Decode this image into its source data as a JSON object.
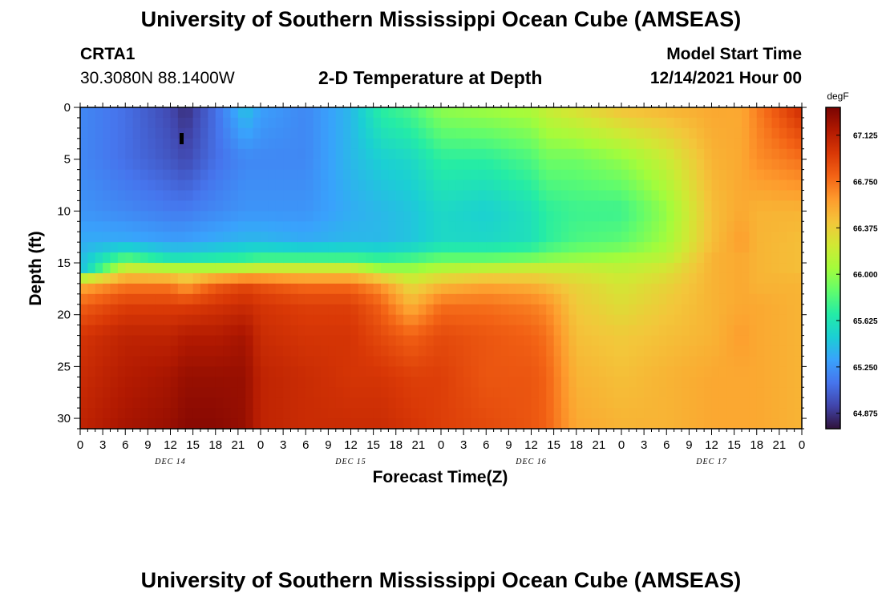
{
  "header": {
    "title": "University of Southern Mississippi Ocean Cube (AMSEAS)",
    "station": "CRTA1",
    "coords": "30.3080N  88.1400W",
    "chart_title": "2-D Temperature at Depth",
    "model_start_label": "Model Start Time",
    "model_start_value": "12/14/2021 Hour 00"
  },
  "footer": {
    "title": "University of Southern Mississippi Ocean Cube (AMSEAS)"
  },
  "chart_data": {
    "type": "heatmap",
    "title": "2-D Temperature at Depth",
    "xlabel": "Forecast Time(Z)",
    "ylabel": "Depth (ft)",
    "x_tick_labels": [
      "0",
      "3",
      "6",
      "9",
      "12",
      "15",
      "18",
      "21",
      "0",
      "3",
      "6",
      "9",
      "12",
      "15",
      "18",
      "21",
      "0",
      "3",
      "6",
      "9",
      "12",
      "15",
      "18",
      "21",
      "0",
      "3",
      "6",
      "9",
      "12",
      "15",
      "18",
      "21",
      "0"
    ],
    "x_date_labels": [
      "DEC 14",
      "DEC 15",
      "DEC 16",
      "DEC 17"
    ],
    "y_ticks": [
      0,
      5,
      10,
      15,
      20,
      25,
      30
    ],
    "y_range": [
      0,
      31
    ],
    "x_range_hours": [
      0,
      96
    ],
    "colorbar": {
      "unit": "degF",
      "ticks": [
        67.125,
        66.75,
        66.375,
        66.0,
        65.625,
        65.25,
        64.875
      ],
      "range": [
        64.75,
        67.35
      ],
      "colors": [
        "#30123b",
        "#4145ab",
        "#4675ed",
        "#39a2fc",
        "#1bcfd4",
        "#24eca6",
        "#61fc6c",
        "#a4fc3b",
        "#d1e834",
        "#f3c63a",
        "#fe9b2d",
        "#f36315",
        "#d93806",
        "#b11901",
        "#7a0402"
      ]
    },
    "hours": [
      0,
      6,
      12,
      14,
      18,
      22,
      24,
      30,
      36,
      40,
      44,
      48,
      54,
      60,
      62,
      66,
      72,
      78,
      84,
      88,
      90,
      96
    ],
    "depths": [
      0,
      5,
      10,
      13,
      14.5,
      15.5,
      17,
      19,
      22,
      26,
      31
    ],
    "values": [
      [
        65.2,
        65.2,
        65.25,
        65.35,
        65.4,
        65.4,
        66.5,
        66.8,
        67.0,
        67.05,
        67.1
      ],
      [
        65.1,
        65.1,
        65.2,
        65.35,
        65.8,
        66.2,
        66.7,
        66.95,
        67.1,
        67.15,
        67.2
      ],
      [
        64.95,
        65.0,
        65.15,
        65.3,
        65.6,
        66.1,
        66.7,
        66.95,
        67.1,
        67.2,
        67.25
      ],
      [
        64.85,
        64.95,
        65.15,
        65.3,
        65.6,
        66.1,
        66.55,
        66.95,
        67.15,
        67.25,
        67.3
      ],
      [
        65.1,
        65.1,
        65.2,
        65.35,
        65.65,
        66.1,
        66.8,
        67.0,
        67.15,
        67.25,
        67.3
      ],
      [
        65.45,
        65.2,
        65.25,
        65.4,
        65.7,
        66.15,
        66.9,
        67.05,
        67.2,
        67.25,
        67.25
      ],
      [
        65.3,
        65.2,
        65.25,
        65.4,
        65.75,
        66.2,
        66.85,
        67.0,
        67.05,
        67.1,
        67.1
      ],
      [
        65.2,
        65.2,
        65.25,
        65.35,
        65.75,
        66.2,
        66.75,
        66.95,
        67.0,
        67.05,
        67.05
      ],
      [
        65.4,
        65.4,
        65.35,
        65.4,
        65.75,
        66.2,
        66.75,
        66.95,
        67.0,
        67.0,
        67.05
      ],
      [
        65.7,
        65.5,
        65.4,
        65.4,
        65.7,
        66.0,
        66.6,
        66.8,
        66.9,
        67.0,
        67.05
      ],
      [
        65.8,
        65.55,
        65.45,
        65.45,
        65.75,
        66.0,
        66.3,
        66.5,
        66.8,
        66.95,
        67.0
      ],
      [
        66.0,
        65.7,
        65.55,
        65.55,
        65.85,
        66.1,
        66.45,
        66.75,
        66.9,
        66.95,
        66.95
      ],
      [
        66.05,
        65.7,
        65.5,
        65.55,
        65.85,
        66.15,
        66.55,
        66.75,
        66.85,
        66.85,
        66.9
      ],
      [
        66.1,
        65.8,
        65.6,
        65.6,
        65.9,
        66.2,
        66.5,
        66.7,
        66.8,
        66.85,
        66.85
      ],
      [
        66.2,
        65.9,
        65.7,
        65.7,
        65.95,
        66.2,
        66.45,
        66.65,
        66.75,
        66.8,
        66.8
      ],
      [
        66.3,
        65.9,
        65.75,
        65.8,
        66.0,
        66.2,
        66.35,
        66.4,
        66.45,
        66.5,
        66.55
      ],
      [
        66.45,
        66.0,
        65.75,
        65.85,
        66.05,
        66.15,
        66.25,
        66.3,
        66.4,
        66.45,
        66.5
      ],
      [
        66.5,
        66.2,
        66.0,
        66.05,
        66.15,
        66.25,
        66.35,
        66.4,
        66.45,
        66.5,
        66.5
      ],
      [
        66.55,
        66.5,
        66.45,
        66.45,
        66.5,
        66.5,
        66.5,
        66.5,
        66.5,
        66.55,
        66.55
      ],
      [
        66.55,
        66.55,
        66.55,
        66.6,
        66.55,
        66.55,
        66.55,
        66.55,
        66.6,
        66.55,
        66.55
      ],
      [
        66.7,
        66.65,
        66.5,
        66.5,
        66.5,
        66.5,
        66.5,
        66.55,
        66.55,
        66.55,
        66.55
      ],
      [
        67.05,
        66.75,
        66.5,
        66.45,
        66.45,
        66.45,
        66.5,
        66.5,
        66.5,
        66.5,
        66.5
      ]
    ]
  }
}
